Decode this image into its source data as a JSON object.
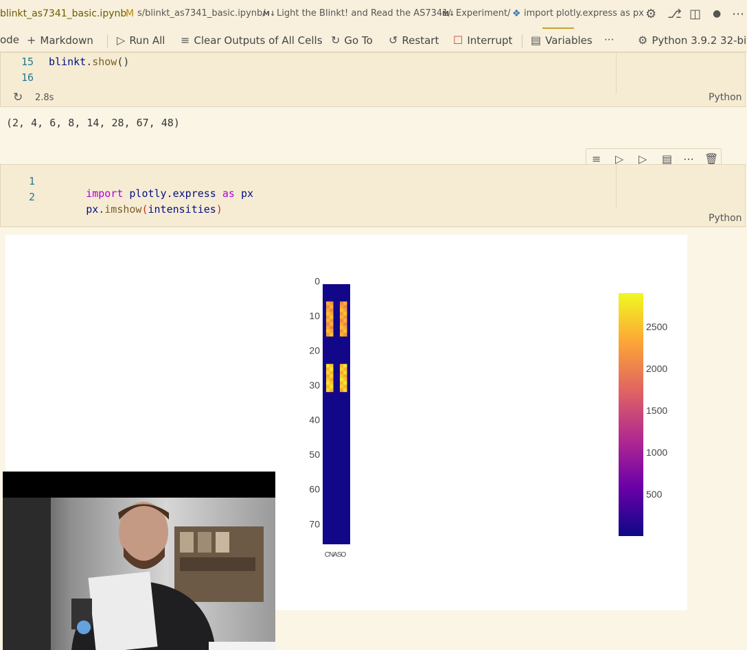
{
  "breadcrumb": {
    "file": "blinkt_as7341_basic.ipynb",
    "modified": "M",
    "path": "s/blinkt_as7341_basic.ipynb/",
    "md1_icon": "M↓",
    "heading1": "Light the Blinkt! and Read the AS7341/",
    "md2_icon": "M↓",
    "heading2": "Experiment/",
    "cell_icon": "python-icon",
    "cell_text": "import plotly.express as px"
  },
  "toolbar": {
    "code": "ode",
    "markdown": "Markdown",
    "run_all": "Run All",
    "clear_outputs": "Clear Outputs of All Cells",
    "go_to": "Go To",
    "restart": "Restart",
    "interrupt": "Interrupt",
    "variables": "Variables",
    "more": "···",
    "kernel": "Python 3.9.2 32-bit"
  },
  "cell1": {
    "lines": [
      {
        "num": "15",
        "obj": "blinkt",
        "dot": ".",
        "fn": "show",
        "rest": "()"
      },
      {
        "num": "16"
      }
    ],
    "exec_time": "2.8s",
    "language": "Python"
  },
  "output1": {
    "text": "(2, 4, 6, 8, 14, 28, 67, 48)"
  },
  "cell2": {
    "line1": {
      "num": "1",
      "kw": "import",
      "module": "plotly.express",
      "as": "as",
      "alias": "px"
    },
    "line2": {
      "num": "2",
      "obj": "px",
      "dot": ".",
      "fn": "imshow",
      "open": "(",
      "arg": "intensities",
      "close": ")"
    },
    "language": "Python"
  },
  "chart_data": {
    "type": "heatmap",
    "colorscale": "plasma",
    "y_ticks": [
      "0",
      "10",
      "20",
      "30",
      "40",
      "50",
      "60",
      "70"
    ],
    "x_tick_label": "CNASO",
    "colorbar_ticks": [
      "2500",
      "2000",
      "1500",
      "1000",
      "500"
    ],
    "ylim": [
      0,
      75
    ],
    "zlim": [
      0,
      2900
    ],
    "hot_rows": [
      {
        "from": 5,
        "to": 15,
        "value": 2300
      },
      {
        "from": 23,
        "to": 31,
        "value": 2550
      }
    ],
    "base_value": 40
  }
}
